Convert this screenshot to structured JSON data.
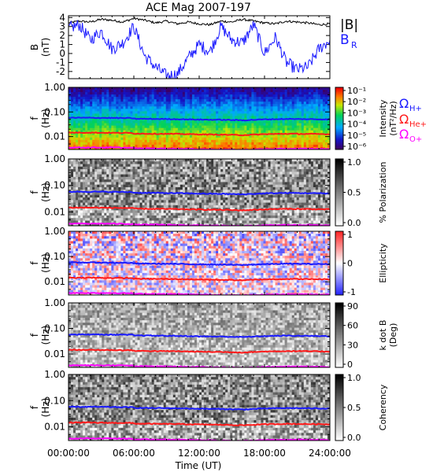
{
  "title": "ACE Mag 2007-197",
  "xaxis": {
    "label": "Time (UT)",
    "ticks": [
      "00:00:00",
      "06:00:00",
      "12:00:00",
      "18:00:00",
      "24:00:00"
    ],
    "tick_hours": [
      0,
      6,
      12,
      18,
      24
    ]
  },
  "legend_bfield": {
    "mag": "|B|",
    "br": "B",
    "br_sub": "R"
  },
  "legend_gyro": [
    {
      "base": "Ω",
      "sub": "H+",
      "color": "#1a1aff"
    },
    {
      "base": "Ω",
      "sub": "He+",
      "color": "#ff1a1a"
    },
    {
      "base": "Ω",
      "sub": "O+",
      "color": "#ff00ff"
    }
  ],
  "colors": {
    "magnitude": "#000000",
    "br": "#1a1aff",
    "h_gyro": "#1a1aff",
    "he_gyro": "#ff1a1a",
    "o_gyro": "#ff00ff"
  },
  "chart_data": [
    {
      "type": "line",
      "panel": "B",
      "ylabel": "B",
      "yunit": "(nT)",
      "ylim": [
        -2.8,
        4.2
      ],
      "yticks": [
        -2,
        -1,
        0,
        1,
        2,
        3,
        4
      ],
      "x_hours": [
        0,
        1,
        2,
        3,
        4,
        5,
        6,
        7,
        8,
        9,
        10,
        11,
        12,
        13,
        14,
        15,
        16,
        17,
        18,
        19,
        20,
        21,
        22,
        23,
        24
      ],
      "series": [
        {
          "name": "|B|",
          "values": [
            3.4,
            3.6,
            3.5,
            3.8,
            3.7,
            3.5,
            3.9,
            3.7,
            3.4,
            3.6,
            3.3,
            3.5,
            3.3,
            3.2,
            3.6,
            3.5,
            3.8,
            3.6,
            3.4,
            3.3,
            3.6,
            3.5,
            3.4,
            3.2,
            3.3
          ]
        },
        {
          "name": "B_R",
          "values": [
            2.8,
            3.2,
            1.5,
            2.5,
            0.5,
            1.2,
            3.0,
            -0.3,
            -1.5,
            -2.5,
            -2.3,
            -0.5,
            1.0,
            0.2,
            3.0,
            1.5,
            1.2,
            3.2,
            0.0,
            1.8,
            -1.0,
            -1.8,
            -1.5,
            0.5,
            1.5
          ]
        }
      ]
    },
    {
      "type": "heatmap",
      "panel": "intensity",
      "ylabel": "f",
      "yunit": "(Hz)",
      "yscale": "log",
      "ylim": [
        0.003,
        1.0
      ],
      "yticks": [
        "1.00",
        "0.10",
        "0.01"
      ],
      "colorbar": {
        "label_main": "Intensity",
        "label_unit": "(nT²/Hz)",
        "ticks": [
          "10⁻¹",
          "10⁻²",
          "10⁻³",
          "10⁻⁴",
          "10⁻⁵",
          "10⁻⁶"
        ],
        "palette": "rainbow"
      }
    },
    {
      "type": "heatmap",
      "panel": "polarization",
      "ylabel": "f",
      "yunit": "(Hz)",
      "yscale": "log",
      "ylim": [
        0.003,
        1.0
      ],
      "yticks": [
        "1.00",
        "0.10",
        "0.01"
      ],
      "colorbar": {
        "label_main": "% Polarization",
        "ticks": [
          "1.0",
          "0.5",
          "0.0"
        ],
        "palette": "gray"
      }
    },
    {
      "type": "heatmap",
      "panel": "ellipticity",
      "ylabel": "f",
      "yunit": "(Hz)",
      "yscale": "log",
      "ylim": [
        0.003,
        1.0
      ],
      "yticks": [
        "1.00",
        "0.10",
        "0.01"
      ],
      "colorbar": {
        "label_main": "Ellipticity",
        "ticks": [
          "1",
          "0",
          "-1"
        ],
        "palette": "bwr"
      }
    },
    {
      "type": "heatmap",
      "panel": "kdotb",
      "ylabel": "f",
      "yunit": "(Hz)",
      "yscale": "log",
      "ylim": [
        0.003,
        1.0
      ],
      "yticks": [
        "1.00",
        "0.10",
        "0.01"
      ],
      "colorbar": {
        "label_main": "k dot B",
        "label_unit": "(Deg)",
        "ticks": [
          "90",
          "60",
          "30",
          "0"
        ],
        "palette": "gray"
      }
    },
    {
      "type": "heatmap",
      "panel": "coherency",
      "ylabel": "f",
      "yunit": "(Hz)",
      "yscale": "log",
      "ylim": [
        0.003,
        1.0
      ],
      "yticks": [
        "1.00",
        "0.10",
        "0.01"
      ],
      "colorbar": {
        "label_main": "Coherency",
        "ticks": [
          "1.0",
          "0.5",
          "0.0"
        ],
        "palette": "gray"
      }
    }
  ],
  "gyro_frequencies_hz": {
    "x_hours": [
      0,
      2,
      4,
      5.9,
      6,
      8,
      10,
      12,
      14,
      16,
      17,
      18,
      20,
      22,
      24
    ],
    "h_plus": [
      0.058,
      0.058,
      0.057,
      0.056,
      0.053,
      0.052,
      0.051,
      0.049,
      0.048,
      0.046,
      0.048,
      0.05,
      0.052,
      0.051,
      0.05
    ],
    "he_plus": [
      0.0145,
      0.0145,
      0.0142,
      0.014,
      0.0133,
      0.013,
      0.0128,
      0.0123,
      0.012,
      0.0115,
      0.012,
      0.0125,
      0.013,
      0.0128,
      0.0125
    ],
    "o_plus": [
      0.0036,
      0.0036,
      0.0036,
      0.0035,
      0.0033,
      0.0033,
      0.0032,
      0.0031,
      0.003,
      0.0029,
      0.003,
      0.0031,
      0.0032,
      0.0032,
      0.0031
    ]
  }
}
